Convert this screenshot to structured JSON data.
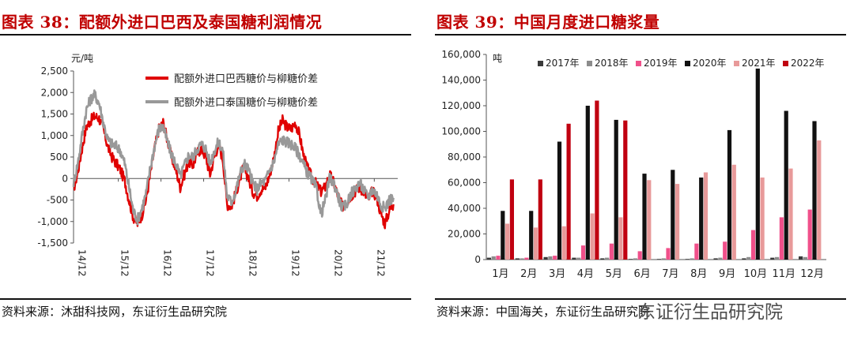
{
  "left": {
    "title": "图表 38：配额外进口巴西及泰国糖利润情况",
    "source": "资料来源：沐甜科技网，东证衍生品研究院",
    "unit": "元/吨"
  },
  "right": {
    "title": "图表 39：中国月度进口糖浆量",
    "source": "资料来源：中国海关，东证衍生品研究院",
    "unit": "吨"
  },
  "watermark": "东证衍生品研究院",
  "chart_data": [
    {
      "type": "line",
      "ylabel": "元/吨",
      "ylim": [
        -1500,
        2500
      ],
      "yticks": [
        "2,500",
        "2,000",
        "1,500",
        "1,000",
        "500",
        "0",
        "-500",
        "-1,000",
        "-1,500"
      ],
      "x_ticks": [
        "14/12",
        "15/12",
        "16/12",
        "17/12",
        "18/12",
        "19/12",
        "20/12",
        "21/12"
      ],
      "legend_position": "top-right",
      "series": [
        {
          "name": "配额外进口巴西糖价与柳糖价差",
          "color": "#e00000",
          "x": [
            0,
            0.1,
            0.2,
            0.3,
            0.4,
            0.5,
            0.6,
            0.7,
            0.8,
            0.9,
            1.0,
            1.1,
            1.2,
            1.3,
            1.4,
            1.5,
            1.6,
            1.7,
            1.8,
            1.9,
            2.0,
            2.1,
            2.2,
            2.3,
            2.4,
            2.5,
            2.6,
            2.7,
            2.8,
            2.9,
            3.0,
            3.1,
            3.2,
            3.3,
            3.4,
            3.5,
            3.6,
            3.7,
            3.8,
            3.9,
            4.0,
            4.1,
            4.2,
            4.3,
            4.4,
            4.5,
            4.6,
            4.7,
            4.8,
            4.9,
            5.0,
            5.1,
            5.2,
            5.3,
            5.4,
            5.5,
            5.6,
            5.7,
            5.8,
            5.9,
            6.0,
            6.1,
            6.2,
            6.3,
            6.4,
            6.5,
            6.6,
            6.7,
            6.8,
            6.9,
            7.0,
            7.1,
            7.2,
            7.3,
            7.4,
            7.5
          ],
          "y": [
            -250,
            150,
            700,
            1200,
            1350,
            1450,
            1400,
            1150,
            750,
            500,
            350,
            200,
            -50,
            -500,
            -900,
            -1050,
            -850,
            -500,
            100,
            700,
            1150,
            1300,
            900,
            500,
            200,
            -200,
            100,
            400,
            300,
            600,
            700,
            500,
            100,
            500,
            800,
            450,
            -600,
            -650,
            -350,
            0,
            300,
            0,
            -300,
            -400,
            -250,
            -200,
            100,
            500,
            1100,
            1350,
            1200,
            1150,
            1300,
            1000,
            500,
            200,
            0,
            -150,
            -300,
            -200,
            100,
            -100,
            -400,
            -650,
            -550,
            -400,
            -300,
            -200,
            -300,
            -500,
            -300,
            -400,
            -800,
            -1050,
            -750,
            -600
          ]
        },
        {
          "name": "配额外进口泰国糖价与柳糖价差",
          "color": "#999999",
          "x": [
            0,
            0.1,
            0.2,
            0.3,
            0.4,
            0.5,
            0.6,
            0.7,
            0.8,
            0.9,
            1.0,
            1.1,
            1.2,
            1.3,
            1.4,
            1.5,
            1.6,
            1.7,
            1.8,
            1.9,
            2.0,
            2.1,
            2.2,
            2.3,
            2.4,
            2.5,
            2.6,
            2.7,
            2.8,
            2.9,
            3.0,
            3.1,
            3.2,
            3.3,
            3.4,
            3.5,
            3.6,
            3.7,
            3.8,
            3.9,
            4.0,
            4.1,
            4.2,
            4.3,
            4.4,
            4.5,
            4.6,
            4.7,
            4.8,
            4.9,
            5.0,
            5.1,
            5.2,
            5.3,
            5.4,
            5.5,
            5.6,
            5.7,
            5.8,
            5.9,
            6.0,
            6.1,
            6.2,
            6.3,
            6.4,
            6.5,
            6.6,
            6.7,
            6.8,
            6.9,
            7.0,
            7.1,
            7.2,
            7.3,
            7.4,
            7.5
          ],
          "y": [
            -100,
            350,
            1000,
            1600,
            1850,
            1950,
            1750,
            1300,
            900,
            800,
            750,
            650,
            350,
            -200,
            -750,
            -950,
            -700,
            -350,
            250,
            750,
            1150,
            1200,
            850,
            550,
            350,
            50,
            300,
            550,
            500,
            700,
            800,
            700,
            350,
            650,
            850,
            650,
            -400,
            -550,
            -300,
            100,
            350,
            200,
            -100,
            -250,
            -100,
            -50,
            200,
            400,
            800,
            900,
            850,
            800,
            700,
            550,
            300,
            100,
            -50,
            -250,
            -850,
            -500,
            0,
            -100,
            -400,
            -700,
            -600,
            -350,
            -250,
            -100,
            -250,
            -450,
            -250,
            -350,
            -600,
            -700,
            -500,
            -450
          ]
        }
      ]
    },
    {
      "type": "bar",
      "ylabel": "吨",
      "ylim": [
        0,
        160000
      ],
      "yticks": [
        "160,000",
        "140,000",
        "120,000",
        "100,000",
        "80,000",
        "60,000",
        "40,000",
        "20,000",
        "0"
      ],
      "categories": [
        "1月",
        "2月",
        "3月",
        "4月",
        "5月",
        "6月",
        "7月",
        "8月",
        "9月",
        "10月",
        "11月",
        "12月"
      ],
      "legend_position": "top",
      "series": [
        {
          "name": "2017年",
          "color": "#3a3a3a",
          "values": [
            1500,
            1000,
            2000,
            1500,
            1000,
            500,
            500,
            500,
            1000,
            1000,
            1500,
            2500
          ]
        },
        {
          "name": "2018年",
          "color": "#8c8c8c",
          "values": [
            2500,
            1000,
            2500,
            1500,
            1500,
            1000,
            1000,
            1000,
            1500,
            2000,
            2000,
            2000
          ]
        },
        {
          "name": "2019年",
          "color": "#f0508a",
          "values": [
            3000,
            1500,
            3000,
            11000,
            12500,
            6500,
            9000,
            12500,
            14000,
            23000,
            33000,
            39000
          ]
        },
        {
          "name": "2020年",
          "color": "#111111",
          "values": [
            38000,
            38000,
            92000,
            120000,
            109000,
            67000,
            70000,
            64000,
            101000,
            149000,
            116000,
            108000
          ]
        },
        {
          "name": "2021年",
          "color": "#e89a9a",
          "values": [
            28000,
            25000,
            26000,
            36000,
            33000,
            62000,
            59000,
            68000,
            74000,
            64000,
            71000,
            93000
          ]
        },
        {
          "name": "2022年",
          "color": "#c00010",
          "values": [
            62500,
            62500,
            106000,
            124000,
            108500,
            0,
            0,
            0,
            0,
            0,
            0,
            0
          ]
        }
      ]
    }
  ]
}
